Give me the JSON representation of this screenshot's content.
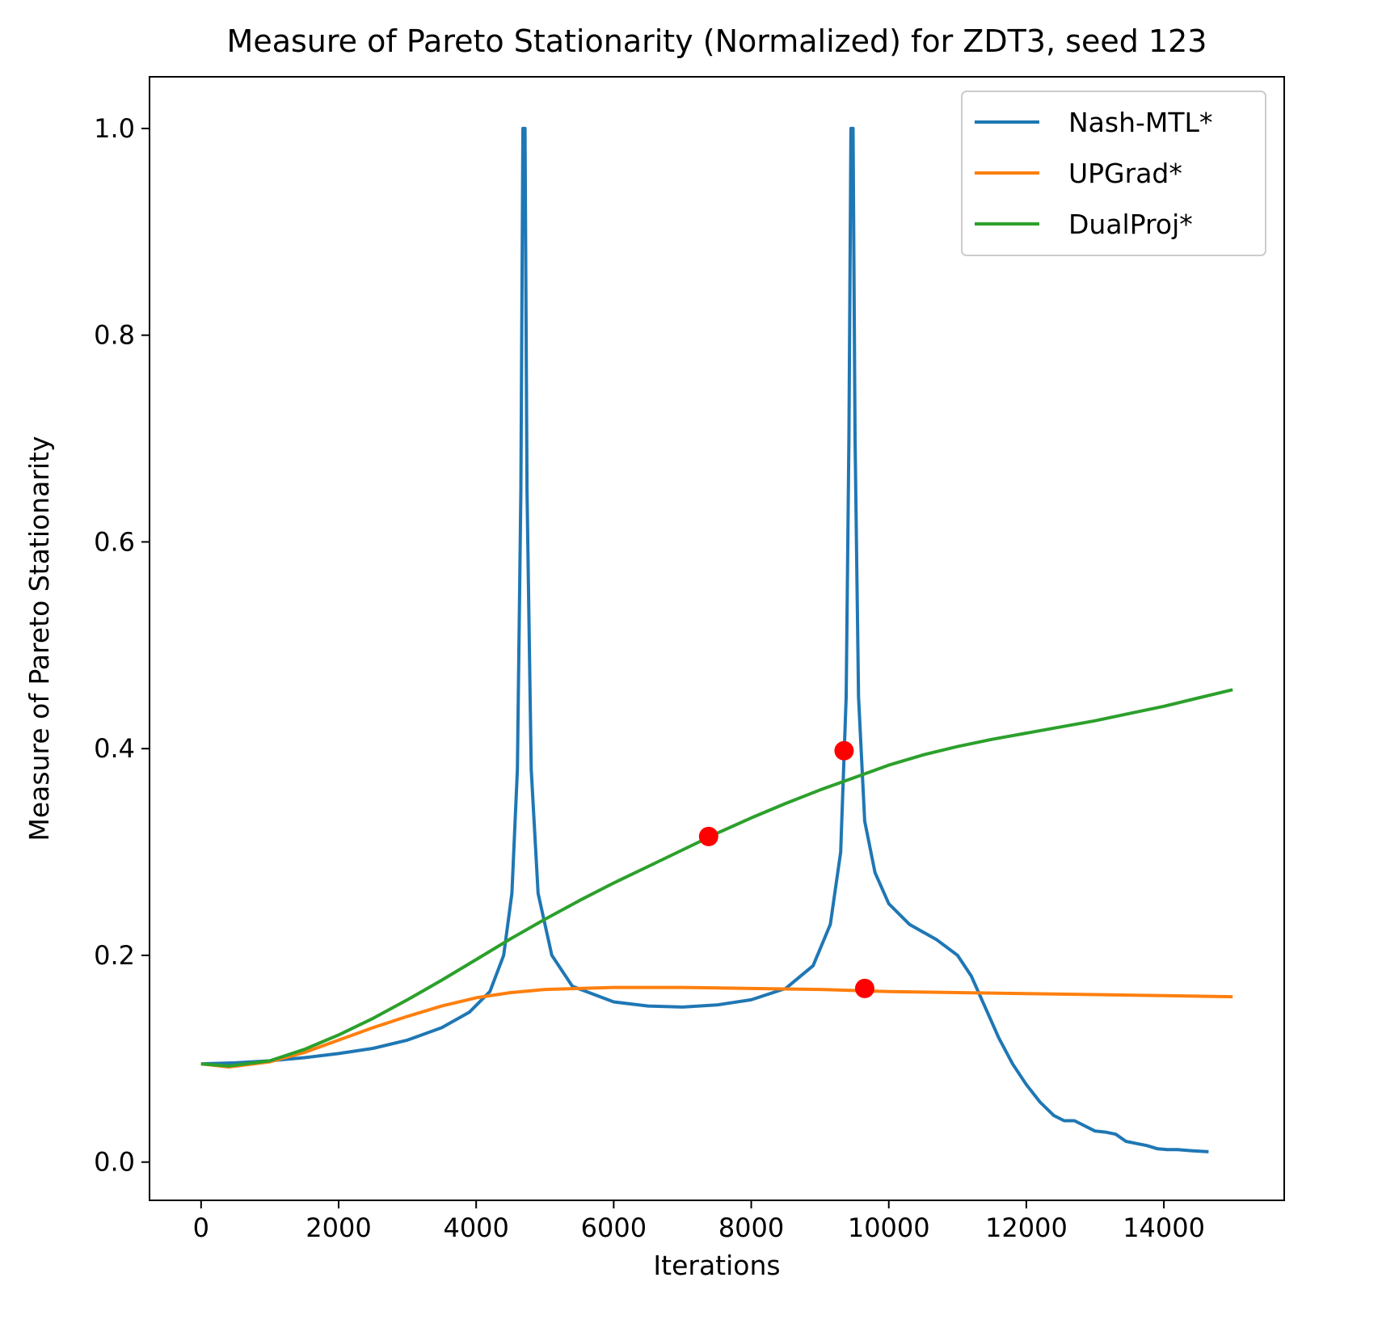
{
  "chart_data": {
    "type": "line",
    "title": "Measure of Pareto Stationarity (Normalized) for ZDT3, seed 123",
    "xlabel": "Iterations",
    "ylabel": "Measure of Pareto Stationarity",
    "xlim": [
      -750,
      15750
    ],
    "ylim": [
      -0.037,
      1.05
    ],
    "xticks": [
      0,
      2000,
      4000,
      6000,
      8000,
      10000,
      12000,
      14000
    ],
    "xtick_labels": [
      "0",
      "2000",
      "4000",
      "6000",
      "8000",
      "10000",
      "12000",
      "14000"
    ],
    "yticks": [
      0.0,
      0.2,
      0.4,
      0.6,
      0.8,
      1.0
    ],
    "ytick_labels": [
      "0.0",
      "0.2",
      "0.4",
      "0.6",
      "0.8",
      "1.0"
    ],
    "grid": false,
    "legend_position": "top-right",
    "series": [
      {
        "name": "Nash-MTL*",
        "color": "#1f77b4",
        "points": [
          [
            0,
            0.095
          ],
          [
            500,
            0.096
          ],
          [
            1000,
            0.098
          ],
          [
            1500,
            0.101
          ],
          [
            2000,
            0.105
          ],
          [
            2500,
            0.11
          ],
          [
            3000,
            0.118
          ],
          [
            3500,
            0.13
          ],
          [
            3900,
            0.145
          ],
          [
            4200,
            0.165
          ],
          [
            4400,
            0.2
          ],
          [
            4520,
            0.26
          ],
          [
            4600,
            0.38
          ],
          [
            4650,
            0.65
          ],
          [
            4680,
            1.0
          ],
          [
            4710,
            1.0
          ],
          [
            4740,
            0.65
          ],
          [
            4800,
            0.38
          ],
          [
            4900,
            0.26
          ],
          [
            5100,
            0.2
          ],
          [
            5400,
            0.17
          ],
          [
            6000,
            0.155
          ],
          [
            6500,
            0.151
          ],
          [
            7000,
            0.15
          ],
          [
            7500,
            0.152
          ],
          [
            8000,
            0.157
          ],
          [
            8500,
            0.168
          ],
          [
            8900,
            0.19
          ],
          [
            9150,
            0.23
          ],
          [
            9300,
            0.3
          ],
          [
            9380,
            0.45
          ],
          [
            9420,
            0.7
          ],
          [
            9450,
            1.0
          ],
          [
            9480,
            1.0
          ],
          [
            9510,
            0.7
          ],
          [
            9560,
            0.45
          ],
          [
            9650,
            0.33
          ],
          [
            9800,
            0.28
          ],
          [
            10000,
            0.25
          ],
          [
            10300,
            0.23
          ],
          [
            10700,
            0.215
          ],
          [
            11000,
            0.2
          ],
          [
            11200,
            0.18
          ],
          [
            11400,
            0.15
          ],
          [
            11600,
            0.12
          ],
          [
            11800,
            0.095
          ],
          [
            12000,
            0.075
          ],
          [
            12200,
            0.058
          ],
          [
            12400,
            0.045
          ],
          [
            12550,
            0.04
          ],
          [
            12700,
            0.04
          ],
          [
            12850,
            0.035
          ],
          [
            13000,
            0.03
          ],
          [
            13150,
            0.029
          ],
          [
            13300,
            0.027
          ],
          [
            13450,
            0.02
          ],
          [
            13600,
            0.018
          ],
          [
            13750,
            0.016
          ],
          [
            13900,
            0.013
          ],
          [
            14050,
            0.012
          ],
          [
            14200,
            0.012
          ],
          [
            14400,
            0.011
          ],
          [
            14650,
            0.01
          ]
        ]
      },
      {
        "name": "UPGrad*",
        "color": "#ff7f0e",
        "points": [
          [
            0,
            0.095
          ],
          [
            400,
            0.092
          ],
          [
            1000,
            0.097
          ],
          [
            1500,
            0.106
          ],
          [
            2000,
            0.118
          ],
          [
            2500,
            0.13
          ],
          [
            3000,
            0.141
          ],
          [
            3500,
            0.151
          ],
          [
            4000,
            0.159
          ],
          [
            4500,
            0.164
          ],
          [
            5000,
            0.167
          ],
          [
            6000,
            0.169
          ],
          [
            7000,
            0.169
          ],
          [
            8000,
            0.168
          ],
          [
            9000,
            0.167
          ],
          [
            10000,
            0.165
          ],
          [
            11000,
            0.164
          ],
          [
            12000,
            0.163
          ],
          [
            13000,
            0.162
          ],
          [
            14000,
            0.161
          ],
          [
            15000,
            0.16
          ]
        ]
      },
      {
        "name": "DualProj*",
        "color": "#2ca02c",
        "points": [
          [
            0,
            0.095
          ],
          [
            400,
            0.093
          ],
          [
            1000,
            0.098
          ],
          [
            1500,
            0.109
          ],
          [
            2000,
            0.123
          ],
          [
            2500,
            0.139
          ],
          [
            3000,
            0.157
          ],
          [
            3500,
            0.176
          ],
          [
            4000,
            0.196
          ],
          [
            4500,
            0.216
          ],
          [
            5000,
            0.235
          ],
          [
            5500,
            0.253
          ],
          [
            6000,
            0.27
          ],
          [
            6500,
            0.286
          ],
          [
            7000,
            0.302
          ],
          [
            7500,
            0.318
          ],
          [
            8000,
            0.333
          ],
          [
            8500,
            0.347
          ],
          [
            9000,
            0.36
          ],
          [
            9500,
            0.372
          ],
          [
            10000,
            0.384
          ],
          [
            10500,
            0.394
          ],
          [
            11000,
            0.402
          ],
          [
            11500,
            0.409
          ],
          [
            12000,
            0.415
          ],
          [
            12500,
            0.421
          ],
          [
            13000,
            0.427
          ],
          [
            13500,
            0.434
          ],
          [
            14000,
            0.441
          ],
          [
            14500,
            0.449
          ],
          [
            15000,
            0.457
          ]
        ]
      }
    ],
    "markers": {
      "color": "#ff0000",
      "points": [
        [
          7380,
          0.315
        ],
        [
          9350,
          0.398
        ],
        [
          9650,
          0.168
        ]
      ]
    }
  }
}
